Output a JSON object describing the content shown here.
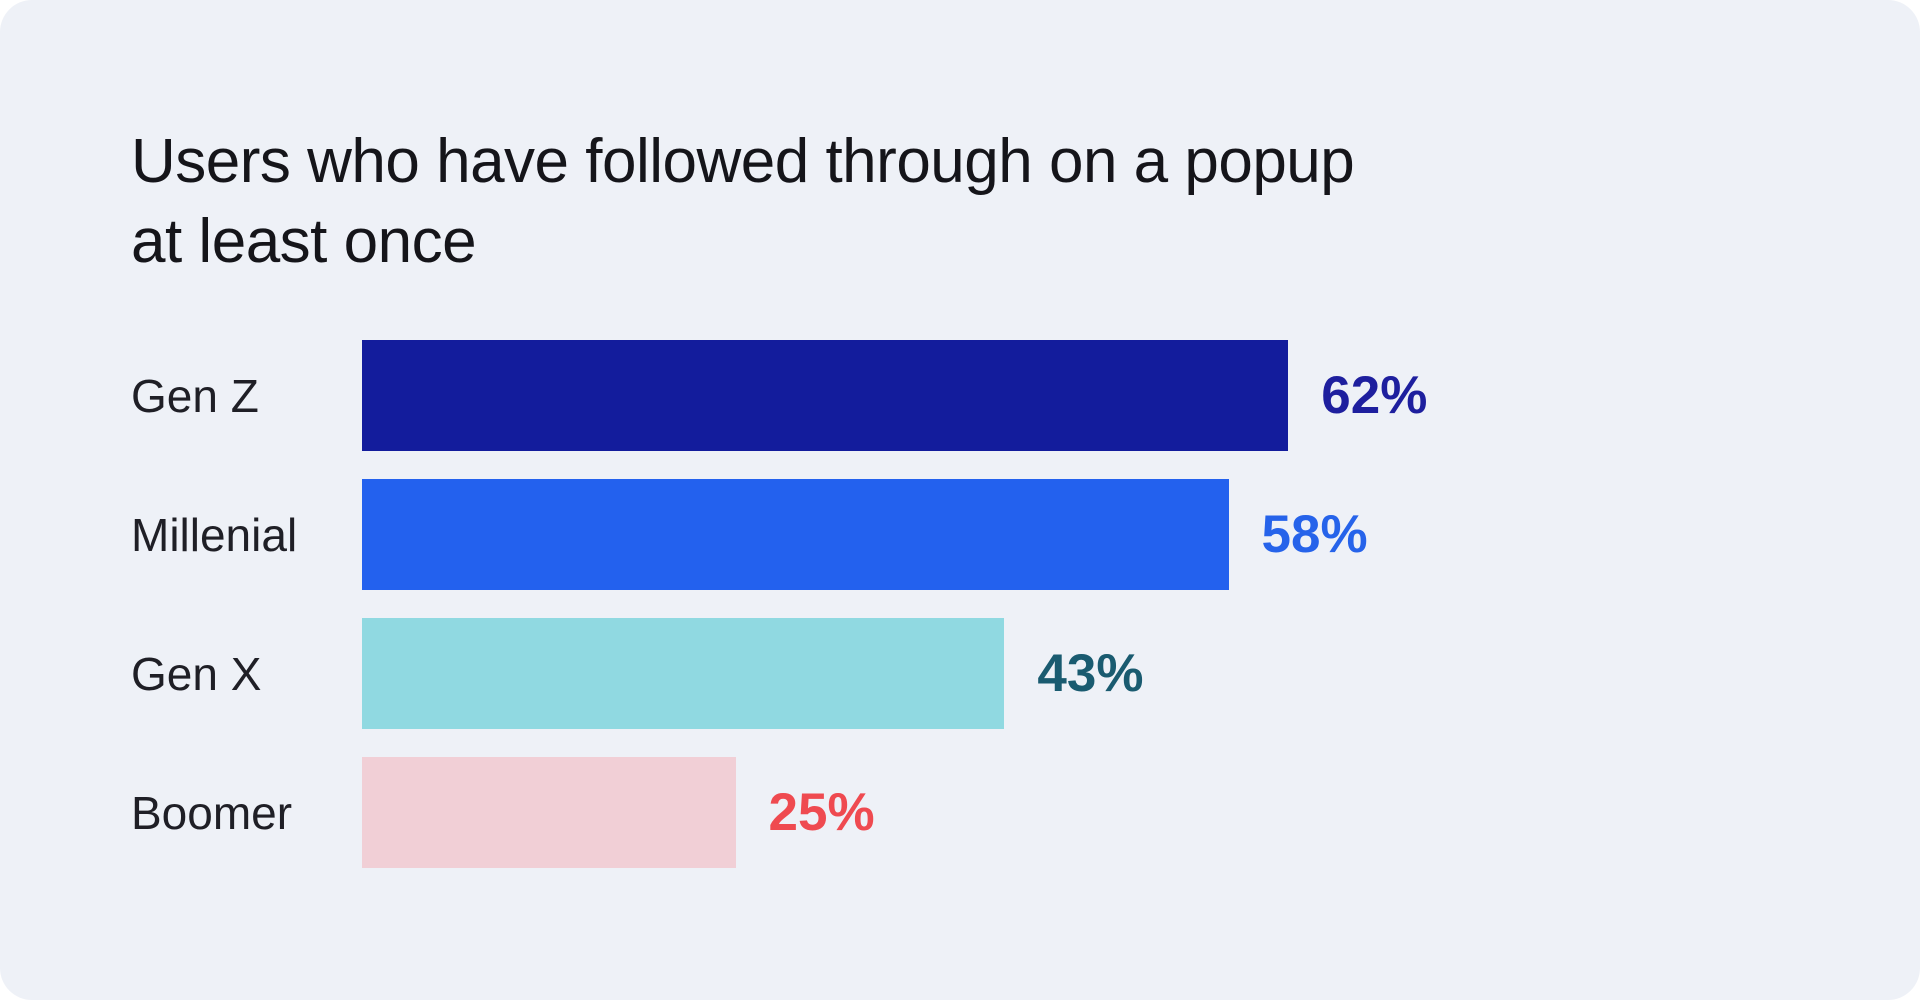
{
  "page": {
    "background": "#ffffff",
    "card_background": "#eef1f7"
  },
  "title": {
    "text": "Users who have followed through on a popup at least once",
    "line1": "Users who have followed through on a popup",
    "line2": "at least once"
  },
  "chart_data": {
    "type": "bar",
    "orientation": "horizontal",
    "title": "Users who have followed through on a popup at least once",
    "categories": [
      "Gen Z",
      "Millenial",
      "Gen X",
      "Boomer"
    ],
    "values": [
      62,
      58,
      43,
      25
    ],
    "value_labels": [
      "62%",
      "58%",
      "43%",
      "25%"
    ],
    "unit": "%",
    "xlim": [
      0,
      100
    ],
    "grid": false,
    "legend": false,
    "axes_visible": false,
    "bar_colors": [
      "#131c9c",
      "#2361ee",
      "#90d9e1",
      "#f1cfd6"
    ],
    "value_label_colors": [
      "#1e1f9e",
      "#2663ea",
      "#1a5b70",
      "#ef4a50"
    ]
  }
}
